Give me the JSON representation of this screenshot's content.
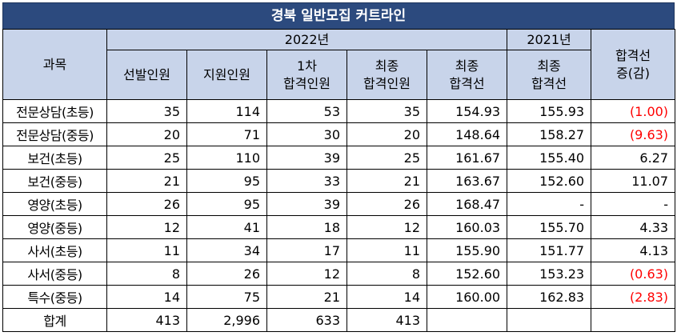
{
  "title": "경북 일반모집 커트라인",
  "header": {
    "subject": "과목",
    "year_2022": "2022년",
    "year_2021": "2021년",
    "diff": [
      "합격선",
      "증(감)"
    ],
    "cols_2022": [
      [
        "선발인원"
      ],
      [
        "지원인원"
      ],
      [
        "1차",
        "합격인원"
      ],
      [
        "최종",
        "합격인원"
      ],
      [
        "최종",
        "합격선"
      ]
    ],
    "col_2021": [
      "최종",
      "합격선"
    ]
  },
  "rows": [
    {
      "subject": "전문상담(초등)",
      "selected": "35",
      "applied": "114",
      "first_pass": "53",
      "final_pass": "35",
      "cutoff_2022": "154.93",
      "cutoff_2021": "155.93",
      "diff": "(1.00)",
      "negative": true
    },
    {
      "subject": "전문상담(중등)",
      "selected": "20",
      "applied": "71",
      "first_pass": "30",
      "final_pass": "20",
      "cutoff_2022": "148.64",
      "cutoff_2021": "158.27",
      "diff": "(9.63)",
      "negative": true
    },
    {
      "subject": "보건(초등)",
      "selected": "25",
      "applied": "110",
      "first_pass": "39",
      "final_pass": "25",
      "cutoff_2022": "161.67",
      "cutoff_2021": "155.40",
      "diff": "6.27",
      "negative": false
    },
    {
      "subject": "보건(중등)",
      "selected": "21",
      "applied": "95",
      "first_pass": "33",
      "final_pass": "21",
      "cutoff_2022": "163.67",
      "cutoff_2021": "152.60",
      "diff": "11.07",
      "negative": false
    },
    {
      "subject": "영양(초등)",
      "selected": "26",
      "applied": "95",
      "first_pass": "39",
      "final_pass": "26",
      "cutoff_2022": "168.47",
      "cutoff_2021": "-",
      "diff": "-",
      "negative": false
    },
    {
      "subject": "영양(중등)",
      "selected": "12",
      "applied": "41",
      "first_pass": "18",
      "final_pass": "12",
      "cutoff_2022": "160.03",
      "cutoff_2021": "155.70",
      "diff": "4.33",
      "negative": false
    },
    {
      "subject": "사서(초등)",
      "selected": "11",
      "applied": "34",
      "first_pass": "17",
      "final_pass": "11",
      "cutoff_2022": "155.90",
      "cutoff_2021": "151.77",
      "diff": "4.13",
      "negative": false
    },
    {
      "subject": "사서(중등)",
      "selected": "8",
      "applied": "26",
      "first_pass": "12",
      "final_pass": "8",
      "cutoff_2022": "152.60",
      "cutoff_2021": "153.23",
      "diff": "(0.63)",
      "negative": true
    },
    {
      "subject": "특수(중등)",
      "selected": "14",
      "applied": "75",
      "first_pass": "21",
      "final_pass": "14",
      "cutoff_2022": "160.00",
      "cutoff_2021": "162.83",
      "diff": "(2.83)",
      "negative": true
    },
    {
      "subject": "합계",
      "selected": "413",
      "applied": "2,996",
      "first_pass": "633",
      "final_pass": "413",
      "cutoff_2022": "",
      "cutoff_2021": "",
      "diff": "",
      "negative": false
    }
  ],
  "colors": {
    "title_bg": "#2c4a7e",
    "header_bg": "#c8d4ea",
    "negative_text": "#ff0000"
  }
}
